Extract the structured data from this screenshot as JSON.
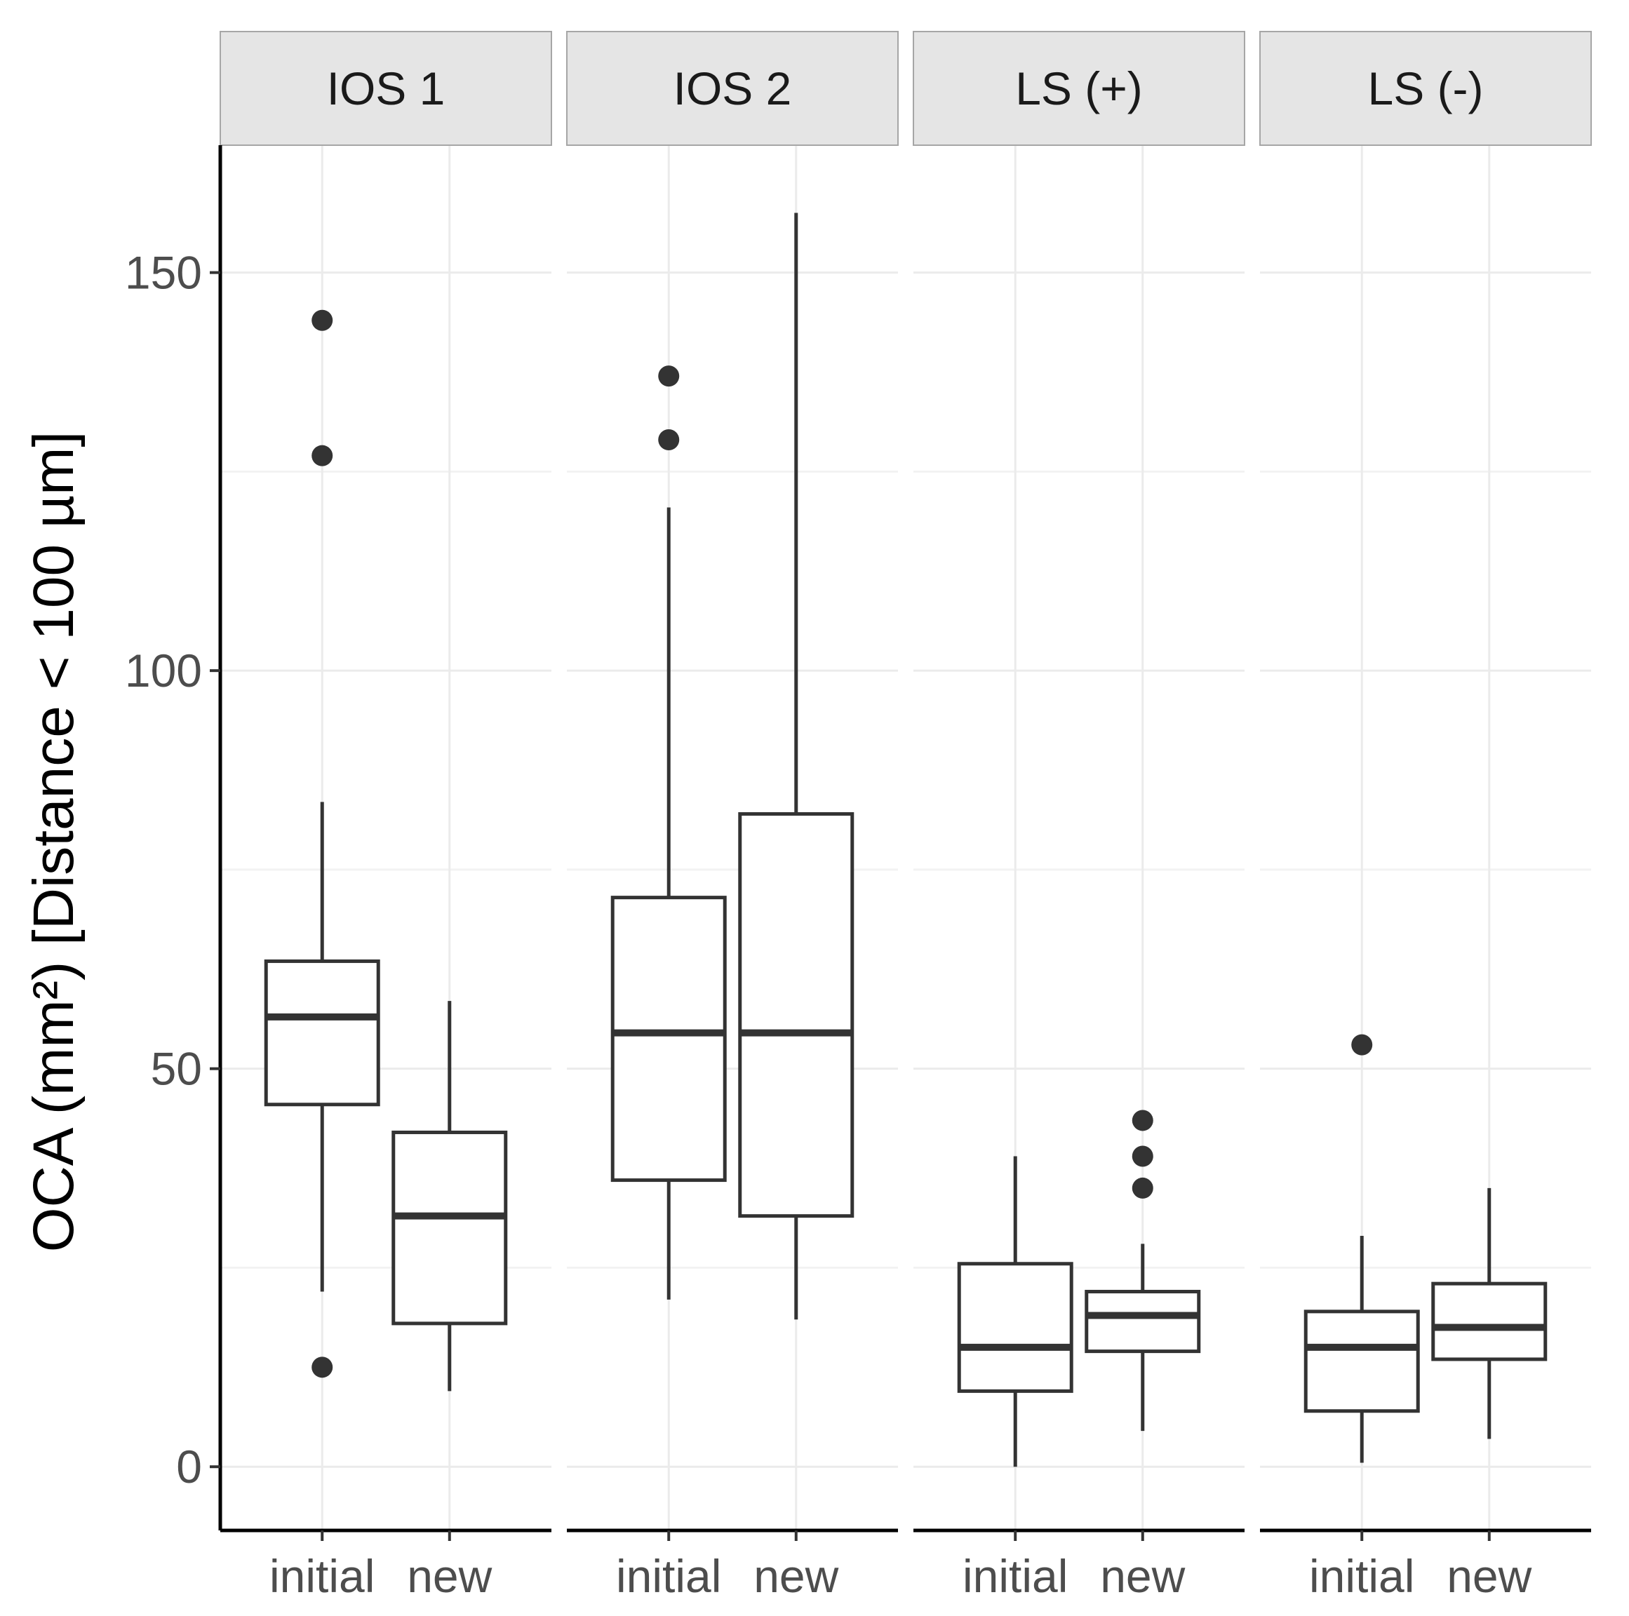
{
  "chart_data": {
    "type": "boxplot",
    "ylabel": "OCA (mm²) [Distance < 100 µm]",
    "xlabel": "",
    "ylim": [
      -8,
      166
    ],
    "yticks": [
      0,
      50,
      100,
      150
    ],
    "ytick_labels": [
      "0",
      "50",
      "100",
      "150"
    ],
    "grid": true,
    "categories": [
      "initial",
      "new"
    ],
    "facets": [
      {
        "label": "IOS 1",
        "boxes": [
          {
            "category": "initial",
            "q1": 45.5,
            "median": 56.5,
            "q3": 63.5,
            "whisker_low": 22,
            "whisker_high": 83.5,
            "outliers": [
              144,
              127,
              12.5
            ]
          },
          {
            "category": "new",
            "q1": 18,
            "median": 31.5,
            "q3": 42,
            "whisker_low": 9.5,
            "whisker_high": 58.5,
            "outliers": []
          }
        ]
      },
      {
        "label": "IOS 2",
        "boxes": [
          {
            "category": "initial",
            "q1": 36,
            "median": 54.5,
            "q3": 71.5,
            "whisker_low": 21,
            "whisker_high": 120.5,
            "outliers": [
              137,
              129
            ]
          },
          {
            "category": "new",
            "q1": 31.5,
            "median": 54.5,
            "q3": 82,
            "whisker_low": 18.5,
            "whisker_high": 157.5,
            "outliers": []
          }
        ]
      },
      {
        "label": "LS (+)",
        "boxes": [
          {
            "category": "initial",
            "q1": 9.5,
            "median": 15,
            "q3": 25.5,
            "whisker_low": 0,
            "whisker_high": 39,
            "outliers": []
          },
          {
            "category": "new",
            "q1": 14.5,
            "median": 19,
            "q3": 22,
            "whisker_low": 4.5,
            "whisker_high": 28,
            "outliers": [
              43.5,
              39,
              35
            ]
          }
        ]
      },
      {
        "label": "LS (-)",
        "boxes": [
          {
            "category": "initial",
            "q1": 7,
            "median": 15,
            "q3": 19.5,
            "whisker_low": 0.5,
            "whisker_high": 29,
            "outliers": [
              53
            ]
          },
          {
            "category": "new",
            "q1": 13.5,
            "median": 17.5,
            "q3": 23,
            "whisker_low": 3.5,
            "whisker_high": 35,
            "outliers": []
          }
        ]
      }
    ]
  },
  "style": {
    "box_color": "#333333",
    "strip_fill": "#e5e5e5",
    "strip_border": "#a6a6a6",
    "grid_major": "#ebebeb",
    "grid_minor": "#f2f2f2",
    "axis_line": "#000000"
  }
}
